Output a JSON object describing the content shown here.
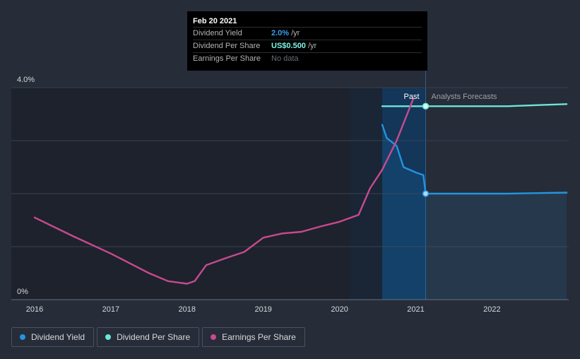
{
  "tooltip": {
    "date": "Feb 20 2021",
    "rows": [
      {
        "label": "Dividend Yield",
        "value": "2.0%",
        "unit": "/yr"
      },
      {
        "label": "Dividend Per Share",
        "value": "US$0.500",
        "unit": "/yr"
      },
      {
        "label": "Earnings Per Share",
        "value": "No data",
        "unit": ""
      }
    ]
  },
  "labels": {
    "past": "Past",
    "forecast": "Analysts Forecasts"
  },
  "legend": [
    {
      "label": "Dividend Yield",
      "color": "#2394df"
    },
    {
      "label": "Dividend Per Share",
      "color": "#6ee5d9"
    },
    {
      "label": "Earnings Per Share",
      "color": "#c74a8f"
    }
  ],
  "colors": {
    "background": "#262c38",
    "past_region": "#1d222c",
    "highlight": "#13395f",
    "dividend_yield": "#2394df",
    "dividend_per_share": "#6ee5d9",
    "earnings_per_share": "#c74a8f"
  },
  "chart_data": {
    "type": "line",
    "x_ticks": [
      "2016",
      "2017",
      "2018",
      "2019",
      "2020",
      "2021",
      "2022"
    ],
    "y_ticks": [
      "0%",
      "4.0%"
    ],
    "ylim": [
      0,
      4.0
    ],
    "xlim": [
      2015.7,
      2022.98
    ],
    "grid": true,
    "past_start": 2020.13,
    "today": 2021.13,
    "series": [
      {
        "name": "Dividend Yield",
        "unit": "%",
        "points": [
          [
            2020.56,
            3.3
          ],
          [
            2020.62,
            3.05
          ],
          [
            2020.75,
            2.9
          ],
          [
            2020.84,
            2.5
          ],
          [
            2021.0,
            2.4
          ],
          [
            2021.1,
            2.35
          ],
          [
            2021.13,
            2.0
          ],
          [
            2021.5,
            2.0
          ],
          [
            2022.2,
            2.0
          ],
          [
            2022.98,
            2.02
          ]
        ]
      },
      {
        "name": "Dividend Per Share",
        "unit": "US$",
        "points": [
          [
            2020.56,
            3.65
          ],
          [
            2021.13,
            3.65
          ],
          [
            2022.2,
            3.65
          ],
          [
            2022.98,
            3.69
          ]
        ]
      },
      {
        "name": "Earnings Per Share",
        "unit": "US$",
        "points": [
          [
            2016.0,
            1.55
          ],
          [
            2016.5,
            1.2
          ],
          [
            2017.0,
            0.87
          ],
          [
            2017.5,
            0.5
          ],
          [
            2017.75,
            0.35
          ],
          [
            2018.0,
            0.3
          ],
          [
            2018.1,
            0.35
          ],
          [
            2018.25,
            0.65
          ],
          [
            2018.5,
            0.78
          ],
          [
            2018.75,
            0.9
          ],
          [
            2019.0,
            1.17
          ],
          [
            2019.25,
            1.25
          ],
          [
            2019.5,
            1.28
          ],
          [
            2019.75,
            1.38
          ],
          [
            2020.0,
            1.47
          ],
          [
            2020.25,
            1.6
          ],
          [
            2020.4,
            2.1
          ],
          [
            2020.56,
            2.45
          ],
          [
            2020.75,
            3.0
          ],
          [
            2020.97,
            3.8
          ]
        ]
      }
    ]
  }
}
